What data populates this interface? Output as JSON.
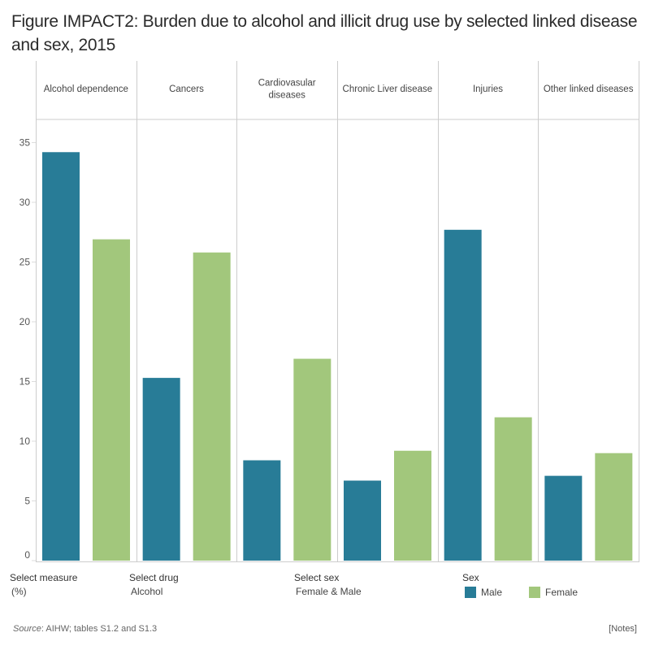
{
  "title": "Figure IMPACT2: Burden due to alcohol and illicit drug use by selected linked disease and sex, 2015",
  "colors": {
    "male": "#287c97",
    "female": "#a2c77c",
    "grid": "#cccccc",
    "axis_text": "#555555"
  },
  "controls": {
    "measure": {
      "label": "Select measure",
      "value": "(%)"
    },
    "drug": {
      "label": "Select drug",
      "value": "Alcohol"
    },
    "sex": {
      "label": "Select sex",
      "value": "Female & Male"
    }
  },
  "legend": {
    "title": "Sex",
    "items": [
      {
        "label": "Male",
        "color": "#287c97"
      },
      {
        "label": "Female",
        "color": "#a2c77c"
      }
    ]
  },
  "footer": {
    "source_label": "Source",
    "source_text": ": AIHW; tables S1.2 and S1.3",
    "notes_label": "[Notes]"
  },
  "chart_data": {
    "type": "bar",
    "title": "Figure IMPACT2: Burden due to alcohol and illicit drug use by selected linked disease and sex, 2015",
    "xlabel": "",
    "ylabel": "",
    "categories": [
      "Alcohol dependence",
      "Cancers",
      "Cardiovasular diseases",
      "Chronic Liver disease",
      "Injuries",
      "Other linked diseases"
    ],
    "category_lines": [
      [
        "Alcohol dependence"
      ],
      [
        "Cancers"
      ],
      [
        "Cardiovasular",
        "diseases"
      ],
      [
        "Chronic Liver disease"
      ],
      [
        "Injuries"
      ],
      [
        "Other linked diseases"
      ]
    ],
    "series": [
      {
        "name": "Male",
        "values": [
          34.2,
          15.3,
          8.4,
          6.7,
          27.7,
          7.1
        ]
      },
      {
        "name": "Female",
        "values": [
          26.9,
          25.8,
          16.9,
          9.2,
          12.0,
          9.0
        ]
      }
    ],
    "ylim": [
      0,
      37
    ],
    "yticks": [
      0,
      5,
      10,
      15,
      20,
      25,
      30,
      35
    ],
    "grid": false,
    "legend": "bottom-right"
  }
}
